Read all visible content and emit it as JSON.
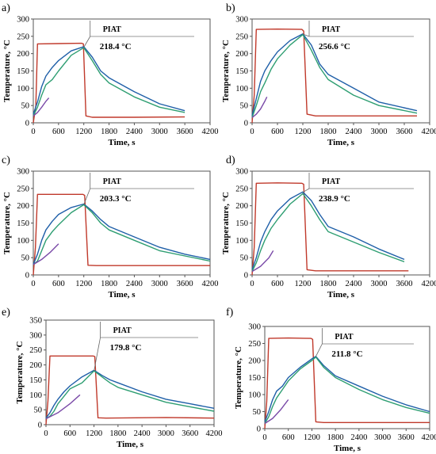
{
  "chart_data": [
    {
      "panel": "a)",
      "type": "line",
      "xlabel": "Time, s",
      "ylabel": "Temperature, °C",
      "xlim": [
        0,
        4200
      ],
      "ylim": [
        0,
        300
      ],
      "xticks": [
        0,
        600,
        1200,
        1800,
        2400,
        3000,
        3600,
        4200
      ],
      "yticks": [
        0,
        50,
        100,
        150,
        200,
        250,
        300
      ],
      "annotation": {
        "label": "PIAT",
        "value": "218.4 °C",
        "x": 1200,
        "y": 218.4
      },
      "series": [
        {
          "color": "#c0392b",
          "x": [
            0,
            60,
            100,
            600,
            1150,
            1190,
            1250,
            1400,
            2400,
            3600
          ],
          "y": [
            0,
            50,
            228,
            229,
            230,
            228,
            20,
            16,
            16,
            17
          ]
        },
        {
          "color": "#1f5fa8",
          "x": [
            0,
            100,
            200,
            300,
            450,
            600,
            900,
            1200,
            1400,
            1600,
            1800,
            2400,
            3000,
            3600
          ],
          "y": [
            25,
            60,
            105,
            135,
            160,
            180,
            208,
            220,
            190,
            150,
            130,
            90,
            55,
            35
          ]
        },
        {
          "color": "#2e9e72",
          "x": [
            0,
            100,
            200,
            300,
            450,
            600,
            900,
            1200,
            1400,
            1600,
            1800,
            2400,
            3000,
            3600
          ],
          "y": [
            20,
            45,
            80,
            110,
            125,
            150,
            195,
            217,
            180,
            140,
            115,
            75,
            45,
            30
          ]
        },
        {
          "color": "#7a4aa8",
          "x": [
            0,
            100,
            200,
            300,
            370
          ],
          "y": [
            20,
            30,
            45,
            62,
            72
          ]
        }
      ]
    },
    {
      "panel": "b)",
      "type": "line",
      "xlabel": "Time, s",
      "ylabel": "Temperature, °C",
      "xlim": [
        0,
        4200
      ],
      "ylim": [
        0,
        300
      ],
      "xticks": [
        0,
        600,
        1200,
        1800,
        2400,
        3000,
        3600,
        4200
      ],
      "yticks": [
        0,
        50,
        100,
        150,
        200,
        250,
        300
      ],
      "annotation": {
        "label": "PIAT",
        "value": "256.6 °C",
        "x": 1200,
        "y": 256.6
      },
      "series": [
        {
          "color": "#c0392b",
          "x": [
            0,
            50,
            100,
            600,
            1180,
            1220,
            1300,
            1500,
            3000,
            3900
          ],
          "y": [
            0,
            80,
            270,
            271,
            270,
            265,
            25,
            20,
            20,
            20
          ]
        },
        {
          "color": "#1f5fa8",
          "x": [
            0,
            100,
            200,
            300,
            450,
            600,
            900,
            1200,
            1400,
            1600,
            1800,
            2400,
            3000,
            3900
          ],
          "y": [
            20,
            70,
            120,
            150,
            180,
            205,
            238,
            257,
            225,
            170,
            140,
            100,
            60,
            35
          ]
        },
        {
          "color": "#2e9e72",
          "x": [
            0,
            100,
            200,
            300,
            450,
            600,
            900,
            1200,
            1400,
            1600,
            1800,
            2400,
            3000,
            3900
          ],
          "y": [
            15,
            50,
            90,
            115,
            155,
            185,
            225,
            255,
            210,
            160,
            125,
            80,
            50,
            28
          ]
        },
        {
          "color": "#7a4aa8",
          "x": [
            0,
            100,
            200,
            300,
            350
          ],
          "y": [
            15,
            25,
            40,
            62,
            75
          ]
        }
      ]
    },
    {
      "panel": "c)",
      "type": "line",
      "xlabel": "Time, s",
      "ylabel": "Temperature, °C",
      "xlim": [
        0,
        4200
      ],
      "ylim": [
        0,
        300
      ],
      "xticks": [
        0,
        600,
        1200,
        1800,
        2400,
        3000,
        3600,
        4200
      ],
      "yticks": [
        0,
        50,
        100,
        150,
        200,
        250,
        300
      ],
      "annotation": {
        "label": "PIAT",
        "value": "203.3 °C",
        "x": 1200,
        "y": 203.3
      },
      "series": [
        {
          "color": "#c0392b",
          "x": [
            0,
            50,
            100,
            600,
            1180,
            1220,
            1300,
            1500,
            3000,
            4200
          ],
          "y": [
            0,
            80,
            233,
            233,
            233,
            230,
            28,
            27,
            27,
            27
          ]
        },
        {
          "color": "#1f5fa8",
          "x": [
            0,
            100,
            200,
            300,
            450,
            600,
            900,
            1200,
            1400,
            1600,
            1800,
            2400,
            3000,
            3600,
            4200
          ],
          "y": [
            30,
            60,
            100,
            130,
            155,
            175,
            195,
            205,
            185,
            160,
            140,
            110,
            80,
            60,
            45
          ]
        },
        {
          "color": "#2e9e72",
          "x": [
            0,
            100,
            200,
            300,
            450,
            600,
            900,
            1200,
            1400,
            1600,
            1800,
            2400,
            3000,
            3600,
            4200
          ],
          "y": [
            30,
            40,
            70,
            100,
            125,
            145,
            180,
            203,
            180,
            150,
            130,
            100,
            70,
            55,
            40
          ]
        },
        {
          "color": "#7a4aa8",
          "x": [
            0,
            200,
            400,
            600
          ],
          "y": [
            30,
            45,
            65,
            90
          ]
        }
      ]
    },
    {
      "panel": "d)",
      "type": "line",
      "xlabel": "Time, s",
      "ylabel": "Temperature, °C",
      "xlim": [
        0,
        4200
      ],
      "ylim": [
        0,
        300
      ],
      "xticks": [
        0,
        600,
        1200,
        1800,
        2400,
        3000,
        3600,
        4200
      ],
      "yticks": [
        0,
        50,
        100,
        150,
        200,
        250,
        300
      ],
      "annotation": {
        "label": "PIAT",
        "value": "238.9 °C",
        "x": 1200,
        "y": 238.9
      },
      "series": [
        {
          "color": "#c0392b",
          "x": [
            0,
            50,
            100,
            600,
            1180,
            1220,
            1300,
            1500,
            3000,
            3700
          ],
          "y": [
            0,
            80,
            265,
            266,
            265,
            262,
            15,
            12,
            12,
            12
          ]
        },
        {
          "color": "#1f5fa8",
          "x": [
            0,
            100,
            200,
            300,
            450,
            600,
            900,
            1200,
            1400,
            1600,
            1800,
            2400,
            3000,
            3600
          ],
          "y": [
            15,
            50,
            95,
            125,
            160,
            185,
            220,
            240,
            215,
            175,
            140,
            110,
            75,
            45
          ]
        },
        {
          "color": "#2e9e72",
          "x": [
            0,
            100,
            200,
            300,
            450,
            600,
            900,
            1200,
            1400,
            1600,
            1800,
            2400,
            3000,
            3600
          ],
          "y": [
            10,
            35,
            70,
            100,
            135,
            160,
            205,
            235,
            200,
            160,
            125,
            95,
            65,
            38
          ]
        },
        {
          "color": "#7a4aa8",
          "x": [
            0,
            200,
            400,
            500
          ],
          "y": [
            10,
            25,
            50,
            70
          ]
        }
      ]
    },
    {
      "panel": "e)",
      "type": "line",
      "xlabel": "Time, s",
      "ylabel": "Temperature, °C",
      "xlim": [
        0,
        4200
      ],
      "ylim": [
        0,
        350
      ],
      "xticks": [
        0,
        600,
        1200,
        1800,
        2400,
        3000,
        3600,
        4200
      ],
      "yticks": [
        0,
        50,
        100,
        150,
        200,
        250,
        300,
        350
      ],
      "annotation": {
        "label": "PIAT",
        "value": "179.8 °C",
        "x": 1200,
        "y": 179.8
      },
      "series": [
        {
          "color": "#c0392b",
          "x": [
            0,
            50,
            100,
            600,
            1180,
            1220,
            1300,
            1500,
            3000,
            4200
          ],
          "y": [
            0,
            80,
            230,
            230,
            230,
            228,
            23,
            22,
            24,
            22
          ]
        },
        {
          "color": "#1f5fa8",
          "x": [
            0,
            100,
            200,
            300,
            450,
            600,
            900,
            1200,
            1400,
            1600,
            1800,
            2400,
            3000,
            3600,
            4200
          ],
          "y": [
            22,
            40,
            65,
            85,
            110,
            130,
            160,
            182,
            165,
            150,
            140,
            110,
            85,
            70,
            55
          ]
        },
        {
          "color": "#2e9e72",
          "x": [
            0,
            100,
            200,
            300,
            450,
            600,
            900,
            1200,
            1400,
            1600,
            1800,
            2400,
            3000,
            3600,
            4200
          ],
          "y": [
            20,
            28,
            45,
            70,
            95,
            120,
            140,
            180,
            160,
            140,
            125,
            100,
            75,
            60,
            45
          ]
        },
        {
          "color": "#7a4aa8",
          "x": [
            0,
            300,
            600,
            850
          ],
          "y": [
            20,
            40,
            70,
            100
          ]
        }
      ]
    },
    {
      "panel": "f)",
      "type": "line",
      "xlabel": "Time, s",
      "ylabel": "Temperature, °C",
      "xlim": [
        0,
        4200
      ],
      "ylim": [
        0,
        300
      ],
      "xticks": [
        0,
        600,
        1200,
        1800,
        2400,
        3000,
        3600,
        4200
      ],
      "yticks": [
        0,
        50,
        100,
        150,
        200,
        250,
        300
      ],
      "annotation": {
        "label": "PIAT",
        "value": "211.8 °C",
        "x": 1300,
        "y": 211.8
      },
      "series": [
        {
          "color": "#c0392b",
          "x": [
            0,
            50,
            100,
            600,
            1180,
            1220,
            1300,
            1500,
            3000,
            4200
          ],
          "y": [
            0,
            80,
            265,
            266,
            265,
            262,
            20,
            18,
            18,
            18
          ]
        },
        {
          "color": "#1f5fa8",
          "x": [
            0,
            100,
            200,
            300,
            450,
            600,
            900,
            1200,
            1300,
            1500,
            1800,
            2400,
            3000,
            3600,
            4200
          ],
          "y": [
            20,
            50,
            85,
            110,
            125,
            150,
            180,
            205,
            212,
            185,
            155,
            125,
            95,
            70,
            50
          ]
        },
        {
          "color": "#2e9e72",
          "x": [
            0,
            100,
            200,
            300,
            450,
            600,
            900,
            1200,
            1300,
            1500,
            1800,
            2400,
            3000,
            3600,
            4200
          ],
          "y": [
            15,
            35,
            65,
            90,
            115,
            140,
            175,
            200,
            210,
            180,
            150,
            115,
            85,
            62,
            45
          ]
        },
        {
          "color": "#7a4aa8",
          "x": [
            0,
            200,
            400,
            600
          ],
          "y": [
            15,
            30,
            55,
            85
          ]
        }
      ]
    }
  ]
}
